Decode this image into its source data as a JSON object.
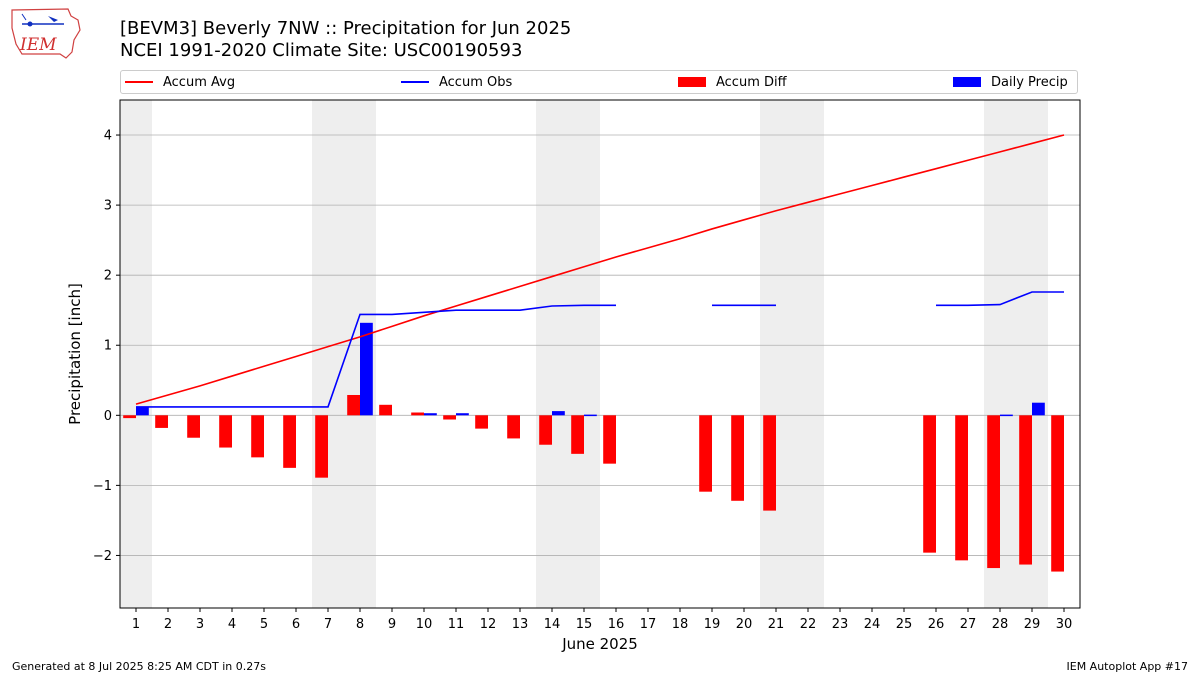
{
  "header": {
    "title_line1": "[BEVM3] Beverly 7NW :: Precipitation for Jun 2025",
    "title_line2": "NCEI 1991-2020 Climate Site: USC00190593",
    "logo_text": "IEM"
  },
  "footer": {
    "left": "Generated at 8 Jul 2025 8:25 AM CDT in 0.27s",
    "right": "IEM Autoplot App #17"
  },
  "colors": {
    "accum_avg": "#ff0000",
    "accum_obs": "#0000ff",
    "accum_diff": "#ff0000",
    "daily_precip": "#0000ff",
    "weekend_shade": "#eeeeee",
    "grid": "#b0b0b0"
  },
  "chart_data": {
    "type": "bar",
    "title": "[BEVM3] Beverly 7NW :: Precipitation for Jun 2025",
    "xlabel": "June 2025",
    "ylabel": "Precipitation [inch]",
    "ylim": [
      -2.75,
      4.5
    ],
    "xlim": [
      0.5,
      30.5
    ],
    "yticks": [
      -2,
      -1,
      0,
      1,
      2,
      3,
      4
    ],
    "ytick_labels": [
      "−2",
      "−1",
      "0",
      "1",
      "2",
      "3",
      "4"
    ],
    "grid": "horizontal",
    "legend_position": "top",
    "days": [
      1,
      2,
      3,
      4,
      5,
      6,
      7,
      8,
      9,
      10,
      11,
      12,
      13,
      14,
      15,
      16,
      17,
      18,
      19,
      20,
      21,
      22,
      23,
      24,
      25,
      26,
      27,
      28,
      29,
      30
    ],
    "shaded_days": [
      1,
      7,
      8,
      14,
      15,
      21,
      22,
      28,
      29
    ],
    "series": [
      {
        "name": "Accum Avg",
        "kind": "line",
        "values": [
          0.16,
          0.29,
          0.42,
          0.56,
          0.7,
          0.84,
          0.98,
          1.12,
          1.27,
          1.42,
          1.56,
          1.7,
          1.84,
          1.98,
          2.12,
          2.26,
          2.39,
          2.52,
          2.66,
          2.79,
          2.92,
          3.04,
          3.16,
          3.28,
          3.4,
          3.52,
          3.64,
          3.76,
          3.88,
          4.0
        ]
      },
      {
        "name": "Accum Obs",
        "kind": "line",
        "values": [
          0.12,
          0.12,
          0.12,
          0.12,
          0.12,
          0.12,
          0.12,
          1.44,
          1.44,
          1.47,
          1.5,
          1.5,
          1.5,
          1.56,
          1.57,
          1.57,
          null,
          null,
          1.57,
          1.57,
          1.57,
          null,
          null,
          null,
          null,
          1.57,
          1.57,
          1.58,
          1.76,
          1.76
        ]
      },
      {
        "name": "Accum Diff",
        "kind": "bar",
        "values": [
          -0.04,
          -0.18,
          -0.32,
          -0.46,
          -0.6,
          -0.75,
          -0.89,
          0.29,
          0.15,
          0.04,
          -0.06,
          -0.19,
          -0.33,
          -0.42,
          -0.55,
          -0.69,
          null,
          null,
          -1.09,
          -1.22,
          -1.36,
          null,
          null,
          null,
          null,
          -1.96,
          -2.07,
          -2.18,
          -2.13,
          -2.23
        ]
      },
      {
        "name": "Daily Precip",
        "kind": "bar",
        "values": [
          0.12,
          0,
          0,
          0,
          0,
          0,
          0,
          1.32,
          0,
          0.03,
          0.03,
          0,
          0,
          0.06,
          0.01,
          0,
          null,
          null,
          0,
          0,
          0,
          null,
          null,
          null,
          null,
          0,
          0,
          0.01,
          0.18,
          0
        ]
      }
    ]
  }
}
